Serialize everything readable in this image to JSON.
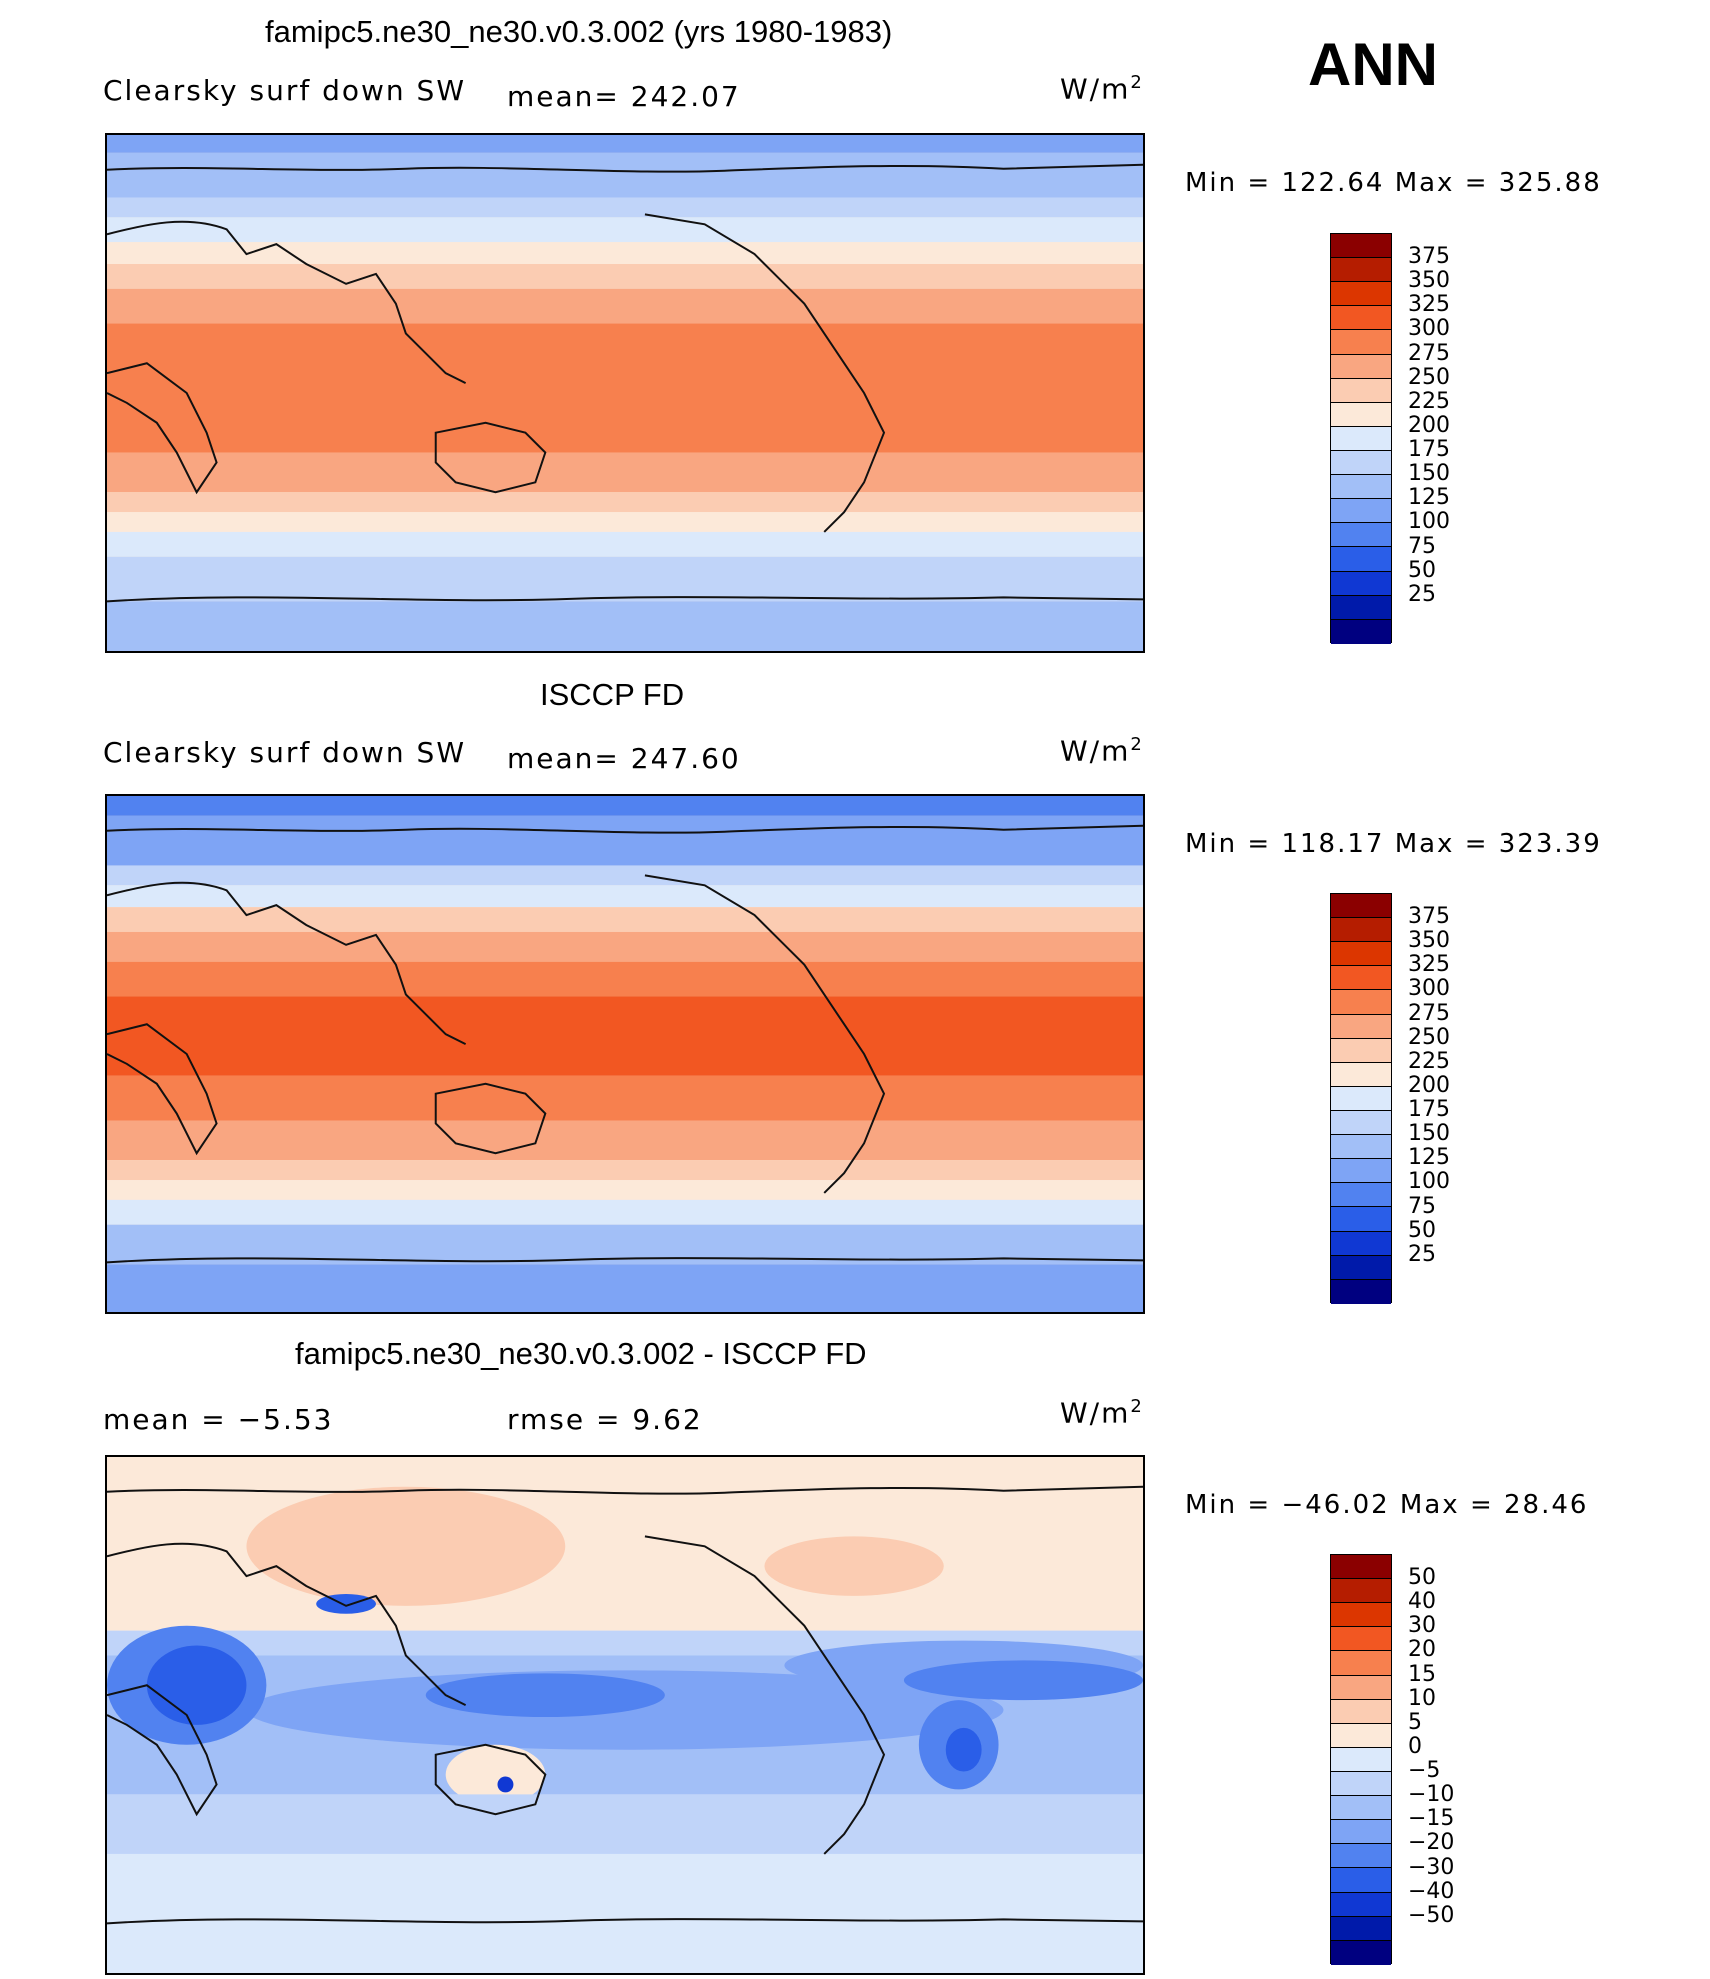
{
  "season": "ANN",
  "units": "W/m",
  "units_sup": "2",
  "panels": [
    {
      "title": "famipc5.ne30_ne30.v0.3.002 (yrs 1980-1983)",
      "variable": "Clearsky surf down SW",
      "stat": "mean= 242.07",
      "minmax": "Min = 122.64 Max = 325.88"
    },
    {
      "title": "ISCCP FD",
      "variable": "Clearsky surf down SW",
      "stat": "mean= 247.60",
      "minmax": "Min = 118.17 Max = 323.39"
    },
    {
      "title": "famipc5.ne30_ne30.v0.3.002 - ISCCP FD",
      "stat_mean": "mean =    −5.53",
      "stat_rmse": "rmse =     9.62",
      "minmax": "Min = −46.02 Max =   28.46"
    }
  ],
  "colorbars": {
    "absolute": {
      "labels": [
        "375",
        "350",
        "325",
        "300",
        "275",
        "250",
        "225",
        "200",
        "175",
        "150",
        "125",
        "100",
        "75",
        "50",
        "25"
      ],
      "colors": [
        "#8b0000",
        "#b51d00",
        "#dc3600",
        "#f25722",
        "#f7804e",
        "#f9a681",
        "#fbccb2",
        "#fce9d9",
        "#dbe9fb",
        "#c0d4f9",
        "#a2bff7",
        "#7ea4f5",
        "#5182f0",
        "#2a5ee8",
        "#1038d3",
        "#001aaa",
        "#000080"
      ]
    },
    "difference": {
      "labels": [
        "50",
        "40",
        "30",
        "20",
        "15",
        "10",
        "5",
        "0",
        "−5",
        "−10",
        "−15",
        "−20",
        "−30",
        "−40",
        "−50"
      ],
      "colors": [
        "#8b0000",
        "#b51d00",
        "#dc3600",
        "#f25722",
        "#f7804e",
        "#f9a681",
        "#fbccb2",
        "#fce9d9",
        "#dbe9fb",
        "#c0d4f9",
        "#a2bff7",
        "#7ea4f5",
        "#5182f0",
        "#2a5ee8",
        "#1038d3",
        "#001aaa",
        "#000080"
      ]
    }
  }
}
